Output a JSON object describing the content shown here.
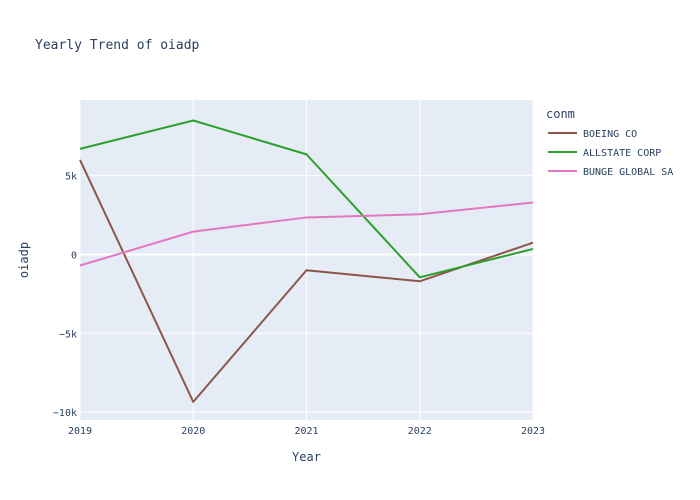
{
  "chart_data": {
    "type": "line",
    "title": "Yearly Trend of oiadp",
    "xlabel": "Year",
    "ylabel": "oiadp",
    "x": [
      2019,
      2020,
      2021,
      2022,
      2023
    ],
    "xticks": [
      "2019",
      "2020",
      "2021",
      "2022",
      "2023"
    ],
    "yticks": [
      {
        "value": -10000,
        "label": "−10k"
      },
      {
        "value": -5000,
        "label": "−5k"
      },
      {
        "value": 0,
        "label": "0"
      },
      {
        "value": 5000,
        "label": "5k"
      }
    ],
    "xlim": [
      2019,
      2023
    ],
    "ylim": [
      -10500,
      9800
    ],
    "grid": true,
    "legend": {
      "title": "conm",
      "position": "right"
    },
    "series": [
      {
        "name": "BOEING CO",
        "color": "#8c564b",
        "values": [
          6000,
          -9350,
          -1000,
          -1700,
          750
        ]
      },
      {
        "name": "ALLSTATE CORP",
        "color": "#2ca02c",
        "values": [
          6700,
          8500,
          6350,
          -1450,
          350
        ]
      },
      {
        "name": "BUNGE GLOBAL SA",
        "color": "#e377c2",
        "values": [
          -700,
          1450,
          2350,
          2550,
          3300
        ]
      }
    ]
  },
  "colors": {
    "plot_background": "#e5ecf6",
    "grid": "#ffffff",
    "text": "#2a3f5f"
  }
}
